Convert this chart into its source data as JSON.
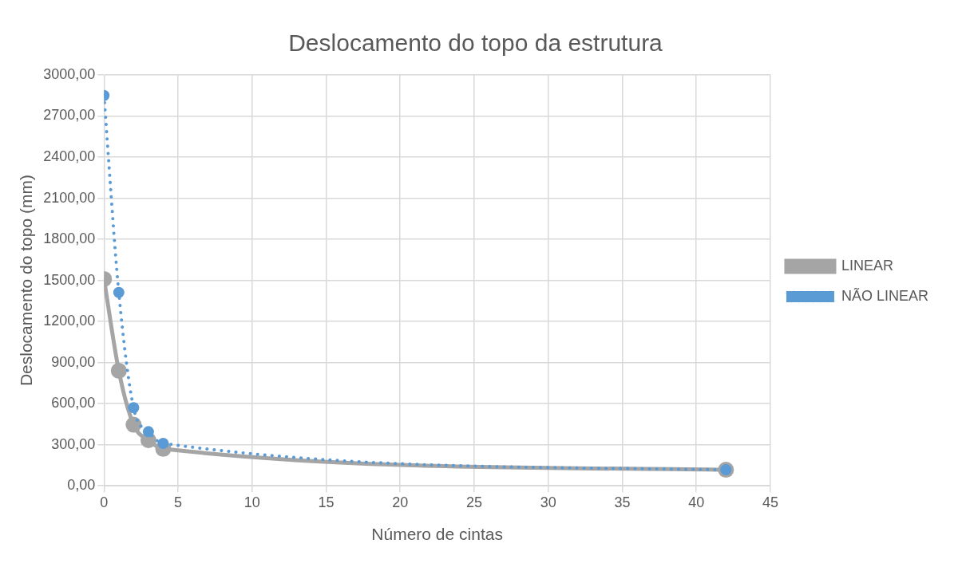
{
  "chart_data": {
    "type": "line",
    "title": "Deslocamento do topo da estrutura",
    "xlabel": "Número de cintas",
    "ylabel": "Deslocamento do topo (mm)",
    "x": [
      0,
      1,
      2,
      3,
      4,
      42
    ],
    "series": [
      {
        "name": "LINEAR",
        "color": "#a5a5a5",
        "values": [
          1510,
          840,
          446,
          333,
          270,
          117
        ],
        "line_style": "solid"
      },
      {
        "name": "NÃO LINEAR",
        "color": "#5b9bd5",
        "values": [
          2850,
          1412,
          570,
          395,
          310,
          117
        ],
        "line_style": "dotted"
      }
    ],
    "xlim": [
      0,
      45
    ],
    "xticks": [
      0,
      5,
      10,
      15,
      20,
      25,
      30,
      35,
      40,
      45
    ],
    "ylim": [
      0,
      3000
    ],
    "yticks": [
      {
        "value": 0,
        "label": "0,00"
      },
      {
        "value": 300,
        "label": "300,00"
      },
      {
        "value": 600,
        "label": "600,00"
      },
      {
        "value": 900,
        "label": "900,00"
      },
      {
        "value": 1200,
        "label": "1200,00"
      },
      {
        "value": 1500,
        "label": "1500,00"
      },
      {
        "value": 1800,
        "label": "1800,00"
      },
      {
        "value": 2100,
        "label": "2100,00"
      },
      {
        "value": 2400,
        "label": "2400,00"
      },
      {
        "value": 2700,
        "label": "2700,00"
      },
      {
        "value": 3000,
        "label": "3000,00"
      }
    ],
    "grid": true,
    "legend": "right",
    "marker": "circle"
  }
}
